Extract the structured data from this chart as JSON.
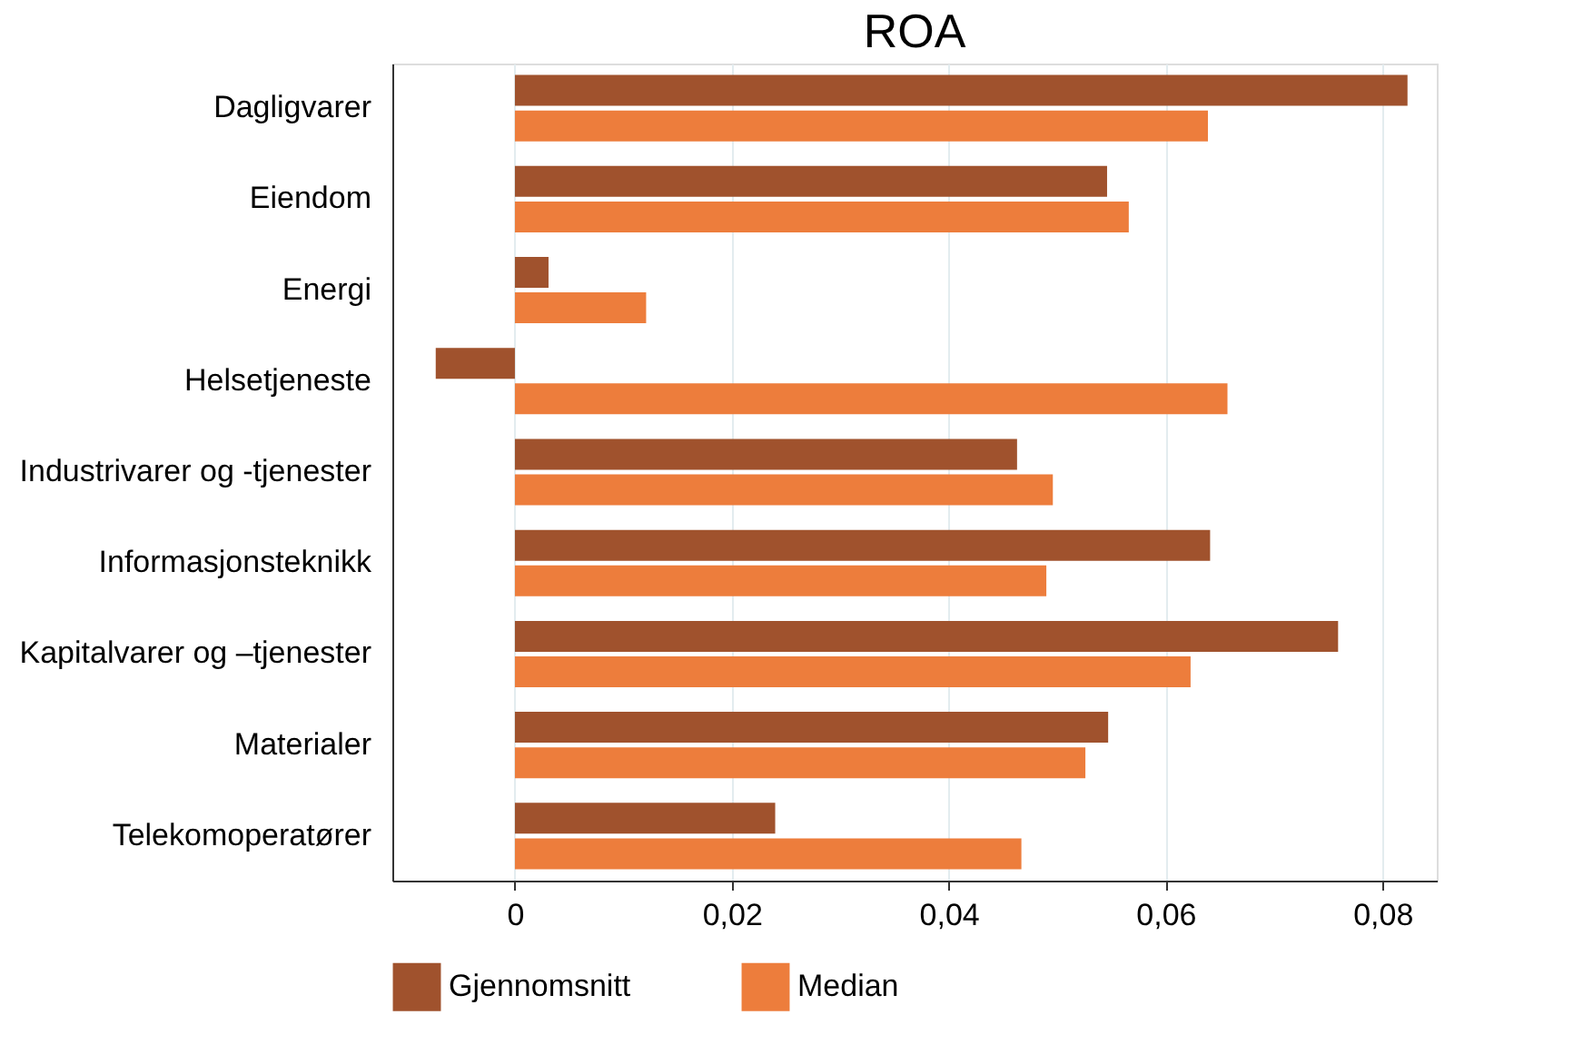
{
  "chart_data": {
    "type": "bar",
    "orientation": "horizontal",
    "title": "ROA",
    "categories": [
      "Dagligvarer",
      "Eiendom",
      "Energi",
      "Helsetjeneste",
      "Industrivarer og -tjenester",
      "Informasjonsteknikk",
      "Kapitalvarer og –tjenester",
      "Materialer",
      "Telekomoperatører"
    ],
    "series": [
      {
        "name": "Gjennomsnitt",
        "color": "#a0522d",
        "values": [
          0.0823,
          0.0546,
          0.0031,
          -0.0073,
          0.0463,
          0.0641,
          0.0759,
          0.0547,
          0.024
        ]
      },
      {
        "name": "Median",
        "color": "#ed7d3c",
        "values": [
          0.0639,
          0.0566,
          0.0121,
          0.0657,
          0.0496,
          0.049,
          0.0623,
          0.0526,
          0.0467
        ]
      }
    ],
    "xlim": [
      -0.0113,
      0.085
    ],
    "xticks": [
      0,
      {
        "value": 0.02,
        "label": "0,02"
      },
      {
        "value": 0.04,
        "label": "0,04"
      },
      {
        "value": 0.06,
        "label": "0,06"
      },
      {
        "value": 0.08,
        "label": "0,08"
      }
    ],
    "grid": "x",
    "legend": "bottom"
  }
}
